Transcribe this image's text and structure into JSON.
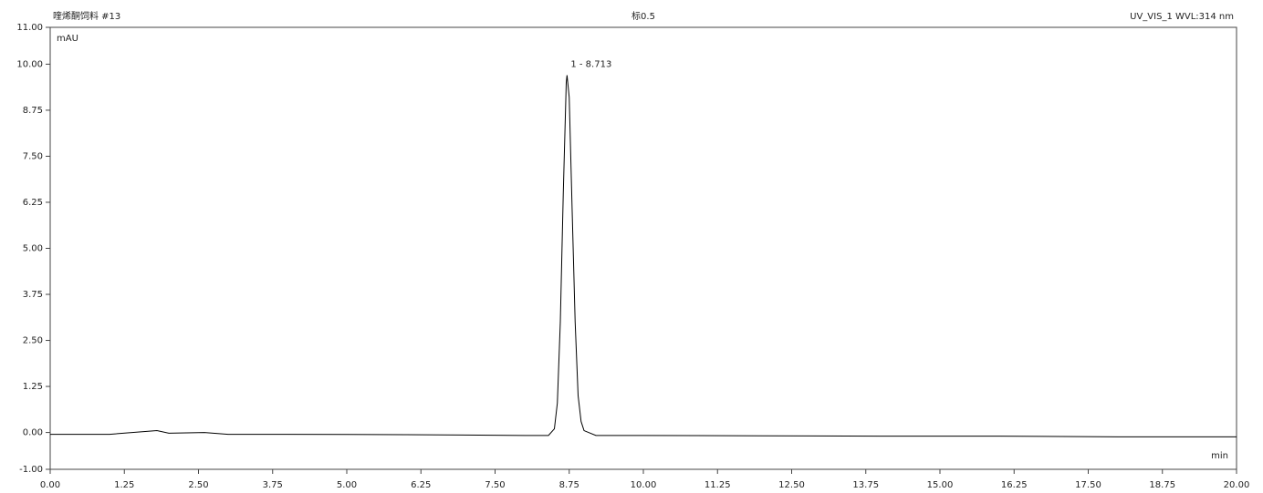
{
  "chart_data": {
    "type": "line",
    "title": "喹烯酮饲料 #13",
    "subtitle": "标0.5",
    "detector": "UV_VIS_1 WVL:314 nm",
    "ylabel": "mAU",
    "xlabel": "min",
    "annotations": [
      "1 - 8.713"
    ],
    "color": "#000000",
    "x": [
      0,
      1,
      1.8,
      2,
      2.6,
      3,
      4,
      6,
      8,
      8.4,
      8.5,
      8.55,
      8.6,
      8.65,
      8.7,
      8.713,
      8.75,
      8.8,
      8.85,
      8.9,
      8.95,
      9.0,
      9.2,
      10,
      12,
      14,
      16,
      18,
      20
    ],
    "values": [
      -0.05,
      -0.05,
      0.05,
      -0.02,
      0.0,
      -0.05,
      -0.05,
      -0.06,
      -0.08,
      -0.08,
      0.1,
      0.8,
      3.0,
      6.5,
      9.5,
      9.7,
      9.1,
      6.0,
      3.0,
      1.0,
      0.3,
      0.05,
      -0.08,
      -0.08,
      -0.09,
      -0.1,
      -0.1,
      -0.12,
      -0.12
    ],
    "xlim": [
      0,
      20
    ],
    "ylim": [
      -1,
      11
    ],
    "xticks": [
      {
        "value": 0,
        "label": "0.00"
      },
      {
        "value": 1.25,
        "label": "1.25"
      },
      {
        "value": 2.5,
        "label": "2.50"
      },
      {
        "value": 3.75,
        "label": "3.75"
      },
      {
        "value": 5,
        "label": "5.00"
      },
      {
        "value": 6.25,
        "label": "6.25"
      },
      {
        "value": 7.5,
        "label": "7.50"
      },
      {
        "value": 8.75,
        "label": "8.75"
      },
      {
        "value": 10,
        "label": "10.00"
      },
      {
        "value": 11.25,
        "label": "11.25"
      },
      {
        "value": 12.5,
        "label": "12.50"
      },
      {
        "value": 13.75,
        "label": "13.75"
      },
      {
        "value": 15,
        "label": "15.00"
      },
      {
        "value": 16.25,
        "label": "16.25"
      },
      {
        "value": 17.5,
        "label": "17.50"
      },
      {
        "value": 18.75,
        "label": "18.75"
      },
      {
        "value": 20,
        "label": "20.00"
      }
    ],
    "yticks": [
      {
        "value": -1,
        "label": "-1.00"
      },
      {
        "value": 0,
        "label": "0.00"
      },
      {
        "value": 1.25,
        "label": "1.25"
      },
      {
        "value": 2.5,
        "label": "2.50"
      },
      {
        "value": 3.75,
        "label": "3.75"
      },
      {
        "value": 5,
        "label": "5.00"
      },
      {
        "value": 6.25,
        "label": "6.25"
      },
      {
        "value": 7.5,
        "label": "7.50"
      },
      {
        "value": 8.75,
        "label": "8.75"
      },
      {
        "value": 10,
        "label": "10.00"
      },
      {
        "value": 11,
        "label": "11.00"
      }
    ]
  }
}
